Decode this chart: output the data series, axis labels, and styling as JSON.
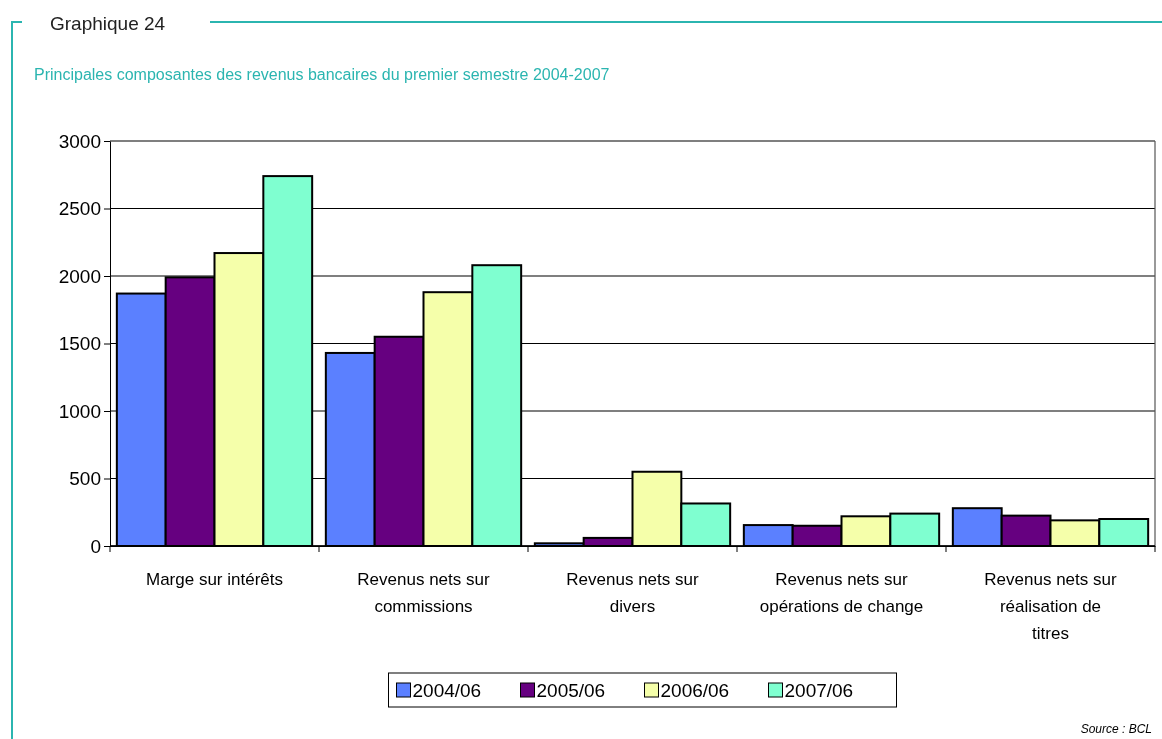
{
  "chart_data": {
    "type": "bar",
    "title": "Graphique 24",
    "subtitle": "Principales composantes des revenus bancaires du premier semestre 2004-2007",
    "categories": [
      "Marge sur intérêts",
      "Revenus nets sur commissions",
      "Revenus nets sur divers",
      "Revenus nets sur opérations de change",
      "Revenus nets sur réalisation de titres"
    ],
    "series": [
      {
        "name": "2004/06",
        "color": "#5b80ff",
        "values": [
          1870,
          1430,
          20,
          155,
          280
        ]
      },
      {
        "name": "2005/06",
        "color": "#660080",
        "values": [
          1990,
          1550,
          60,
          150,
          225
        ]
      },
      {
        "name": "2006/06",
        "color": "#f5ffaa",
        "values": [
          2170,
          1880,
          550,
          220,
          190
        ]
      },
      {
        "name": "2007/06",
        "color": "#7fffd0",
        "values": [
          2740,
          2080,
          315,
          240,
          200
        ]
      }
    ],
    "ylim": [
      0,
      3000
    ],
    "yticks": [
      0,
      500,
      1000,
      1500,
      2000,
      2500,
      3000
    ],
    "grid": "y",
    "legend": "bottom",
    "annotations": [
      "Source : BCL"
    ]
  }
}
